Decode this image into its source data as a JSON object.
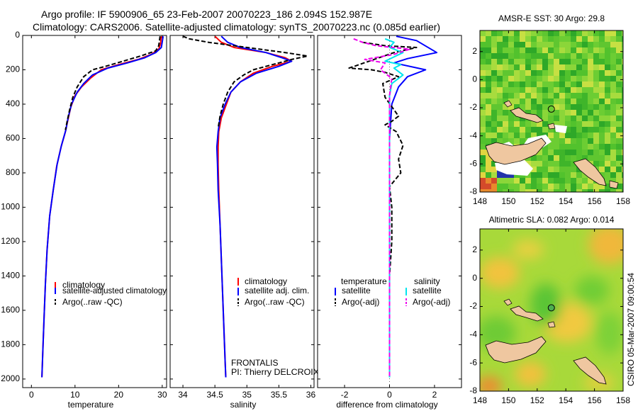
{
  "title": {
    "line1": "Argo profile: IF 5900906_65 23-Feb-2007 20070223_186 2.094S 152.987E",
    "line2": "Climatology: CARS2006. Satellite-adjusted climatology: synTS_20070223.nc (0.085d earlier)"
  },
  "colors": {
    "clim": "#ff0000",
    "sat": "#0000ff",
    "argo": "#000000",
    "sat_sal": "#00e5ee",
    "argo_sal": "#ee00ee",
    "land": "#efc7a0"
  },
  "side_text": "CSIRO 05-Mar-2007 09:00:54",
  "chart_data": [
    {
      "id": "temperature",
      "type": "line",
      "xlabel": "temperature",
      "ylabel": "",
      "xlim": [
        -2,
        31
      ],
      "ylim": [
        2050,
        0
      ],
      "xticks": [
        "0",
        "10",
        "20",
        "30"
      ],
      "xtick_values": [
        0,
        10,
        20,
        30
      ],
      "yticks": [
        "0",
        "200",
        "400",
        "600",
        "800",
        "1000",
        "1200",
        "1400",
        "1600",
        "1800",
        "2000"
      ],
      "ytick_values": [
        0,
        200,
        400,
        600,
        800,
        1000,
        1200,
        1400,
        1600,
        1800,
        2000
      ],
      "legend": [
        "climatology",
        "satellite-adjusted climatology",
        "Argo(..raw -QC)"
      ],
      "series": [
        {
          "name": "climatology",
          "style": "solid",
          "color": "clim",
          "points": [
            [
              29.8,
              5
            ],
            [
              29.6,
              50
            ],
            [
              29.2,
              80
            ],
            [
              27.5,
              110
            ],
            [
              24.5,
              140
            ],
            [
              20,
              170
            ],
            [
              16,
              200
            ],
            [
              13.5,
              250
            ],
            [
              11.5,
              300
            ],
            [
              10,
              350
            ],
            [
              9,
              420
            ],
            [
              8.3,
              500
            ],
            [
              7.8,
              560
            ],
            [
              6.8,
              650
            ],
            [
              5.8,
              760
            ],
            [
              5,
              900
            ],
            [
              4.2,
              1050
            ],
            [
              3.6,
              1250
            ],
            [
              3.2,
              1450
            ],
            [
              2.9,
              1650
            ],
            [
              2.6,
              1850
            ],
            [
              2.4,
              1990
            ]
          ]
        },
        {
          "name": "satellite-adjusted climatology",
          "style": "solid",
          "color": "sat",
          "points": [
            [
              30.2,
              5
            ],
            [
              30,
              40
            ],
            [
              29.8,
              70
            ],
            [
              28.5,
              100
            ],
            [
              26,
              130
            ],
            [
              22,
              160
            ],
            [
              17.5,
              190
            ],
            [
              14,
              230
            ],
            [
              12,
              280
            ],
            [
              10.5,
              330
            ],
            [
              9.2,
              400
            ],
            [
              8.4,
              480
            ],
            [
              7.9,
              550
            ],
            [
              6.9,
              640
            ],
            [
              5.9,
              750
            ],
            [
              5,
              900
            ],
            [
              4.2,
              1050
            ],
            [
              3.6,
              1250
            ],
            [
              3.2,
              1450
            ],
            [
              2.9,
              1650
            ],
            [
              2.6,
              1850
            ],
            [
              2.4,
              1990
            ]
          ]
        },
        {
          "name": "Argo(..raw -QC)",
          "style": "dash",
          "color": "argo",
          "points": [
            [
              29.5,
              5
            ],
            [
              29.2,
              60
            ],
            [
              28.5,
              90
            ],
            [
              25,
              120
            ],
            [
              21,
              150
            ],
            [
              17,
              180
            ],
            [
              14,
              200
            ],
            [
              12,
              240
            ],
            [
              10.5,
              300
            ],
            [
              9.5,
              360
            ],
            [
              8.8,
              430
            ],
            [
              8.2,
              500
            ],
            [
              7.8,
              550
            ]
          ]
        }
      ]
    },
    {
      "id": "salinity",
      "type": "line",
      "xlabel": "salinity",
      "ylabel": "",
      "xlim": [
        33.8,
        36.05
      ],
      "ylim": [
        2050,
        0
      ],
      "xticks": [
        "34",
        "34.5",
        "35",
        "35.5",
        "36"
      ],
      "xtick_values": [
        34,
        34.5,
        35,
        35.5,
        36
      ],
      "legend": [
        "climatology",
        "satellite adj. clim.",
        "Argo(..raw -QC)"
      ],
      "annotation": [
        "FRONTALIS",
        "PI: Thierry DELCROIX"
      ],
      "series": [
        {
          "name": "climatology",
          "style": "solid",
          "color": "clim",
          "points": [
            [
              34.5,
              5
            ],
            [
              34.6,
              40
            ],
            [
              34.8,
              70
            ],
            [
              35.3,
              100
            ],
            [
              35.6,
              130
            ],
            [
              35.7,
              150
            ],
            [
              35.4,
              180
            ],
            [
              35.1,
              220
            ],
            [
              34.9,
              270
            ],
            [
              34.75,
              330
            ],
            [
              34.68,
              400
            ],
            [
              34.6,
              480
            ],
            [
              34.56,
              560
            ],
            [
              34.55,
              650
            ],
            [
              34.55,
              750
            ],
            [
              34.56,
              900
            ],
            [
              34.58,
              1100
            ],
            [
              34.6,
              1300
            ],
            [
              34.62,
              1500
            ],
            [
              34.64,
              1700
            ],
            [
              34.66,
              1900
            ],
            [
              34.67,
              1990
            ]
          ]
        },
        {
          "name": "satellite adj. clim.",
          "style": "solid",
          "color": "sat",
          "points": [
            [
              34.6,
              5
            ],
            [
              34.7,
              40
            ],
            [
              34.9,
              70
            ],
            [
              35.3,
              100
            ],
            [
              35.55,
              130
            ],
            [
              35.7,
              150
            ],
            [
              35.5,
              180
            ],
            [
              35.15,
              220
            ],
            [
              34.9,
              270
            ],
            [
              34.75,
              330
            ],
            [
              34.66,
              400
            ],
            [
              34.58,
              480
            ],
            [
              34.55,
              560
            ],
            [
              34.53,
              650
            ],
            [
              34.54,
              750
            ],
            [
              34.55,
              900
            ],
            [
              34.58,
              1100
            ],
            [
              34.6,
              1300
            ],
            [
              34.62,
              1500
            ],
            [
              34.64,
              1700
            ],
            [
              34.66,
              1900
            ],
            [
              34.67,
              1990
            ]
          ]
        },
        {
          "name": "Argo(..raw -QC)",
          "style": "dash",
          "color": "argo",
          "points": [
            [
              34.0,
              5
            ],
            [
              34.1,
              20
            ],
            [
              34.4,
              40
            ],
            [
              34.8,
              60
            ],
            [
              35.2,
              80
            ],
            [
              35.6,
              100
            ],
            [
              35.95,
              120
            ],
            [
              35.7,
              140
            ],
            [
              35.5,
              160
            ],
            [
              35.3,
              180
            ],
            [
              35.1,
              200
            ],
            [
              34.95,
              230
            ],
            [
              34.8,
              270
            ],
            [
              34.7,
              330
            ],
            [
              34.63,
              400
            ],
            [
              34.58,
              470
            ],
            [
              34.55,
              540
            ]
          ]
        }
      ]
    },
    {
      "id": "difference",
      "type": "line",
      "xlabel": "difference from climatology",
      "ylabel": "",
      "xlim": [
        -3.2,
        3.2
      ],
      "ylim": [
        2050,
        0
      ],
      "xticks": [
        "-2",
        "0",
        "2"
      ],
      "xtick_values": [
        -2,
        0,
        2
      ],
      "legend_titles": [
        "temperature",
        "salinity"
      ],
      "legend": [
        "satellite",
        "Argo(-adj)",
        "satellite",
        "Argo(-adj)"
      ],
      "series": [
        {
          "name": "temperature satellite",
          "style": "solid",
          "color": "sat",
          "points": [
            [
              0.3,
              5
            ],
            [
              1.2,
              30
            ],
            [
              2.1,
              100
            ],
            [
              0.8,
              135
            ],
            [
              0.2,
              160
            ],
            [
              1.6,
              200
            ],
            [
              0.8,
              240
            ],
            [
              0.4,
              300
            ],
            [
              0.1,
              400
            ],
            [
              0,
              600
            ],
            [
              0,
              1000
            ],
            [
              0,
              1990
            ]
          ]
        },
        {
          "name": "temperature Argo(-adj)",
          "style": "dash",
          "color": "argo",
          "points": [
            [
              -1.2,
              40
            ],
            [
              -0.2,
              60
            ],
            [
              1.2,
              70
            ],
            [
              0.2,
              100
            ],
            [
              -1.8,
              190
            ],
            [
              -0.8,
              200
            ],
            [
              -0.2,
              215
            ],
            [
              0.4,
              240
            ],
            [
              -0.3,
              280
            ],
            [
              -0.2,
              360
            ],
            [
              0.4,
              470
            ],
            [
              0.1,
              500
            ],
            [
              -0.2,
              520
            ],
            [
              0.3,
              560
            ],
            [
              0.6,
              640
            ],
            [
              0.4,
              720
            ],
            [
              0.5,
              800
            ],
            [
              0,
              880
            ],
            [
              0.1,
              1000
            ],
            [
              0.1,
              1200
            ],
            [
              0,
              1400
            ],
            [
              0,
              1450
            ]
          ]
        },
        {
          "name": "salinity satellite",
          "style": "solid",
          "color": "sat_sal",
          "points": [
            [
              -0.2,
              20
            ],
            [
              0.2,
              40
            ],
            [
              0,
              70
            ],
            [
              0.6,
              100
            ],
            [
              -0.2,
              150
            ],
            [
              0.5,
              170
            ],
            [
              0.2,
              190
            ],
            [
              0.6,
              230
            ],
            [
              0.1,
              280
            ],
            [
              0,
              350
            ],
            [
              0,
              600
            ],
            [
              0,
              1000
            ],
            [
              0,
              1990
            ]
          ]
        },
        {
          "name": "salinity Argo(-adj)",
          "style": "dash",
          "color": "argo_sal",
          "points": [
            [
              -1.6,
              20
            ],
            [
              -1.2,
              40
            ],
            [
              -0.6,
              60
            ],
            [
              0.9,
              80
            ],
            [
              0.2,
              110
            ],
            [
              -1.1,
              140
            ],
            [
              -0.2,
              160
            ],
            [
              -0.4,
              200
            ],
            [
              0.1,
              250
            ],
            [
              0,
              350
            ],
            [
              0,
              1000
            ],
            [
              0,
              1990
            ]
          ]
        }
      ]
    },
    {
      "id": "sst_map",
      "type": "heatmap",
      "title": "AMSR-E SST: 30 Argo: 29.8",
      "xlim": [
        148,
        158
      ],
      "ylim": [
        -8,
        3.5
      ],
      "xticks": [
        "148",
        "150",
        "152",
        "154",
        "156",
        "158"
      ],
      "xtick_values": [
        148,
        150,
        152,
        154,
        156,
        158
      ],
      "yticks": [
        "2",
        "0",
        "-2",
        "-4",
        "-6",
        "-8"
      ],
      "ytick_values": [
        2,
        0,
        -2,
        -4,
        -6,
        -8
      ],
      "marker": {
        "lon": 152.987,
        "lat": -2.094
      }
    },
    {
      "id": "sla_map",
      "type": "heatmap",
      "title": "Altimetric SLA: 0.082 Argo: 0.014",
      "xlim": [
        148,
        158
      ],
      "ylim": [
        -8,
        3.5
      ],
      "xticks": [
        "148",
        "150",
        "152",
        "154",
        "156",
        "158"
      ],
      "xtick_values": [
        148,
        150,
        152,
        154,
        156,
        158
      ],
      "yticks": [
        "2",
        "0",
        "-2",
        "-4",
        "-6",
        "-8"
      ],
      "ytick_values": [
        2,
        0,
        -2,
        -4,
        -6,
        -8
      ],
      "marker": {
        "lon": 152.987,
        "lat": -2.094
      }
    }
  ]
}
